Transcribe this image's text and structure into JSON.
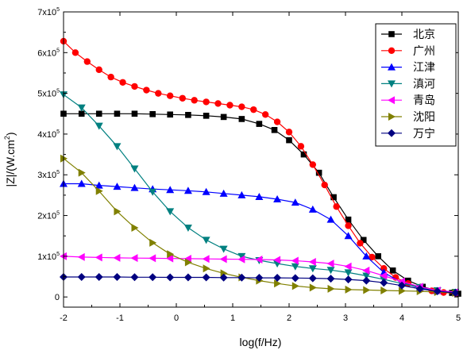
{
  "chart_data": {
    "type": "line",
    "title": "",
    "xlabel": "log(f/Hz)",
    "ylabel": "|Z|/(W.cm²)",
    "xlim": [
      -2,
      5
    ],
    "ylim": [
      -25000,
      700000
    ],
    "x_ticks": [
      -2,
      -1,
      0,
      1,
      2,
      3,
      4,
      5
    ],
    "y_ticks": [
      {
        "value": 0,
        "mantissa": "0",
        "exp": ""
      },
      {
        "value": 100000,
        "mantissa": "1x10",
        "exp": "5"
      },
      {
        "value": 200000,
        "mantissa": "2x10",
        "exp": "5"
      },
      {
        "value": 300000,
        "mantissa": "3x10",
        "exp": "5"
      },
      {
        "value": 400000,
        "mantissa": "4x10",
        "exp": "5"
      },
      {
        "value": 500000,
        "mantissa": "5x10",
        "exp": "5"
      },
      {
        "value": 600000,
        "mantissa": "6x10",
        "exp": "5"
      },
      {
        "value": 700000,
        "mantissa": "7x10",
        "exp": "5"
      }
    ],
    "grid": false,
    "legend_position": "top-right",
    "series": [
      {
        "name": "北京",
        "color": "#000000",
        "marker": "square",
        "x": [
          -2,
          -1.68,
          -1.37,
          -1.05,
          -0.74,
          -0.42,
          -0.11,
          0.21,
          0.53,
          0.84,
          1.16,
          1.47,
          1.74,
          2.0,
          2.26,
          2.53,
          2.79,
          3.05,
          3.32,
          3.58,
          3.84,
          4.11,
          4.37,
          4.63,
          4.89,
          5.0
        ],
        "y": [
          450000,
          450000,
          450000,
          450000,
          450000,
          449000,
          448000,
          447000,
          445000,
          442000,
          437000,
          425000,
          410000,
          385000,
          350000,
          305000,
          245000,
          190000,
          140000,
          100000,
          65000,
          40000,
          25000,
          15000,
          10000,
          8000
        ]
      },
      {
        "name": "广州",
        "color": "#ff0000",
        "marker": "circle",
        "x": [
          -2,
          -1.79,
          -1.58,
          -1.37,
          -1.16,
          -0.95,
          -0.74,
          -0.53,
          -0.32,
          -0.11,
          0.11,
          0.32,
          0.53,
          0.74,
          0.95,
          1.16,
          1.37,
          1.58,
          1.79,
          2.0,
          2.21,
          2.42,
          2.63,
          2.84,
          3.05,
          3.26,
          3.47,
          3.68,
          3.89,
          4.11,
          4.32,
          4.53,
          4.74,
          4.95
        ],
        "y": [
          628000,
          600000,
          578000,
          558000,
          540000,
          527000,
          517000,
          508000,
          500000,
          494000,
          488000,
          483000,
          479000,
          475000,
          471000,
          467000,
          460000,
          448000,
          430000,
          405000,
          370000,
          325000,
          275000,
          222000,
          175000,
          132000,
          98000,
          70000,
          48000,
          33000,
          22000,
          15000,
          11000,
          9000
        ]
      },
      {
        "name": "江津",
        "color": "#0000ff",
        "marker": "triangle-up",
        "x": [
          -2,
          -1.68,
          -1.37,
          -1.05,
          -0.74,
          -0.42,
          -0.11,
          0.21,
          0.53,
          0.84,
          1.16,
          1.47,
          1.79,
          2.11,
          2.42,
          2.74,
          3.05,
          3.37,
          3.68,
          4.0,
          4.32,
          4.63,
          4.95
        ],
        "y": [
          278000,
          278000,
          274000,
          271000,
          268000,
          265000,
          263000,
          261000,
          258000,
          254000,
          250000,
          246000,
          240000,
          232000,
          215000,
          190000,
          150000,
          100000,
          60000,
          35000,
          22000,
          15000,
          11000
        ]
      },
      {
        "name": "滇河",
        "color": "#008080",
        "marker": "triangle-down",
        "x": [
          -2,
          -1.68,
          -1.37,
          -1.05,
          -0.74,
          -0.42,
          -0.11,
          0.21,
          0.53,
          0.84,
          1.16,
          1.47,
          1.79,
          2.11,
          2.42,
          2.74,
          3.05,
          3.37,
          3.68,
          4.0,
          4.32,
          4.63,
          4.95
        ],
        "y": [
          497000,
          465000,
          420000,
          370000,
          315000,
          258000,
          210000,
          170000,
          140000,
          118000,
          100000,
          90000,
          82000,
          75000,
          70000,
          66000,
          60000,
          52000,
          43000,
          33000,
          24000,
          16000,
          12000
        ]
      },
      {
        "name": "青岛",
        "color": "#ff00ff",
        "marker": "triangle-left",
        "x": [
          -2,
          -1.68,
          -1.37,
          -1.05,
          -0.74,
          -0.42,
          -0.11,
          0.21,
          0.53,
          0.84,
          1.16,
          1.47,
          1.79,
          2.11,
          2.42,
          2.74,
          3.05,
          3.37,
          3.68,
          4.0,
          4.32,
          4.63,
          4.95
        ],
        "y": [
          100000,
          98000,
          97000,
          96000,
          95500,
          95000,
          94500,
          94000,
          93500,
          93000,
          92500,
          92000,
          91000,
          89000,
          86000,
          82000,
          75000,
          65000,
          52000,
          38000,
          25000,
          16000,
          12000
        ]
      },
      {
        "name": "沈阳",
        "color": "#808000",
        "marker": "triangle-right",
        "x": [
          -2,
          -1.68,
          -1.37,
          -1.05,
          -0.74,
          -0.42,
          -0.11,
          0.21,
          0.53,
          0.84,
          1.16,
          1.47,
          1.79,
          2.11,
          2.42,
          2.74,
          3.05,
          3.37,
          3.68,
          4.0,
          4.32,
          4.63,
          4.95
        ],
        "y": [
          340000,
          305000,
          260000,
          210000,
          170000,
          133000,
          105000,
          85000,
          70000,
          58000,
          48000,
          40000,
          33000,
          27000,
          23000,
          20000,
          18000,
          17000,
          16000,
          15000,
          14000,
          12000,
          10000
        ]
      },
      {
        "name": "万宁",
        "color": "#000080",
        "marker": "diamond",
        "x": [
          -2,
          -1.68,
          -1.37,
          -1.05,
          -0.74,
          -0.42,
          -0.11,
          0.21,
          0.53,
          0.84,
          1.16,
          1.47,
          1.79,
          2.11,
          2.42,
          2.74,
          3.05,
          3.37,
          3.68,
          4.0,
          4.32,
          4.63,
          4.95
        ],
        "y": [
          49000,
          49000,
          49000,
          49000,
          48500,
          48500,
          48000,
          48000,
          48000,
          47500,
          47500,
          47000,
          47000,
          46500,
          46000,
          45000,
          43000,
          40000,
          35000,
          28000,
          20000,
          14000,
          10000
        ]
      }
    ]
  }
}
